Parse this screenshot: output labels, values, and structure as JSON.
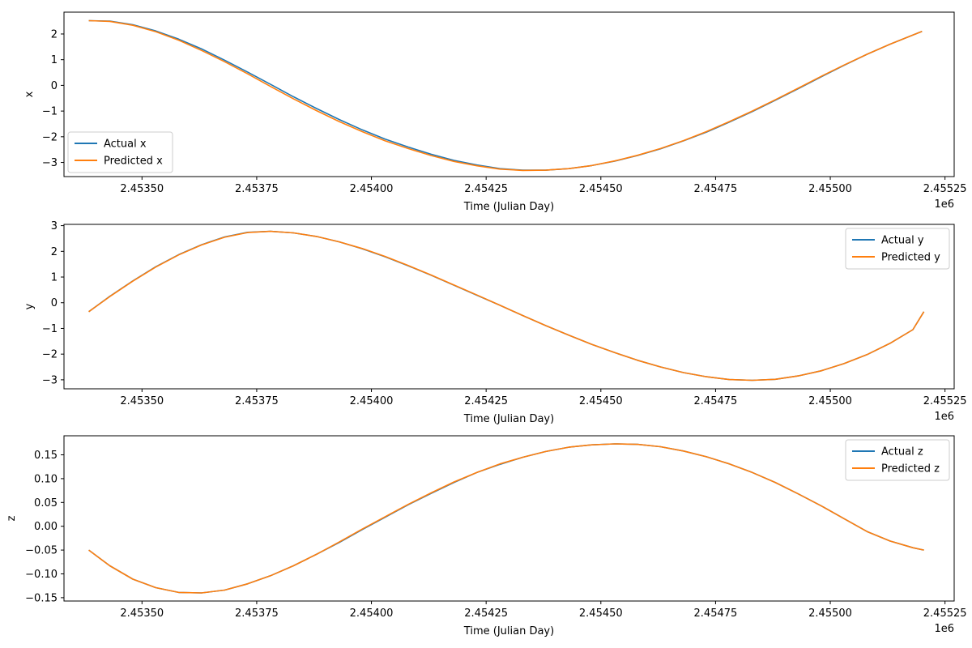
{
  "chart_data": [
    {
      "type": "line",
      "xlabel": "Time (Julian Day)",
      "ylabel": "x",
      "x_offset_label": "1e6",
      "xlim": [
        2453330,
        2455270
      ],
      "ylim": [
        -3.55,
        2.85
      ],
      "xticks": [
        2453500,
        2453750,
        2454000,
        2454250,
        2454500,
        2454750,
        2455000,
        2455250
      ],
      "xtick_labels": [
        "2.45350",
        "2.45375",
        "2.45400",
        "2.45425",
        "2.45450",
        "2.45475",
        "2.45500",
        "2.45525"
      ],
      "yticks": [
        -3,
        -2,
        -1,
        0,
        1,
        2
      ],
      "ytick_labels": [
        "−3",
        "−2",
        "−1",
        "0",
        "1",
        "2"
      ],
      "legend_position": "lower-left",
      "grid": false,
      "x": [
        2453384,
        2453430,
        2453480,
        2453530,
        2453580,
        2453630,
        2453680,
        2453730,
        2453780,
        2453830,
        2453880,
        2453930,
        2453980,
        2454030,
        2454080,
        2454130,
        2454180,
        2454230,
        2454280,
        2454330,
        2454380,
        2454430,
        2454480,
        2454530,
        2454580,
        2454630,
        2454680,
        2454730,
        2454780,
        2454830,
        2454880,
        2454930,
        2454980,
        2455030,
        2455080,
        2455130,
        2455180,
        2455200
      ],
      "series": [
        {
          "name": "Actual x",
          "color": "#1f77b4",
          "values": [
            2.52,
            2.5,
            2.36,
            2.12,
            1.8,
            1.42,
            0.98,
            0.52,
            0.04,
            -0.44,
            -0.9,
            -1.33,
            -1.73,
            -2.09,
            -2.4,
            -2.68,
            -2.92,
            -3.1,
            -3.24,
            -3.3,
            -3.3,
            -3.24,
            -3.12,
            -2.95,
            -2.73,
            -2.47,
            -2.16,
            -1.82,
            -1.43,
            -1.02,
            -0.58,
            -0.13,
            0.33,
            0.78,
            1.21,
            1.6,
            1.96,
            2.1
          ]
        },
        {
          "name": "Predicted x",
          "color": "#ff7f0e",
          "values": [
            2.52,
            2.49,
            2.34,
            2.09,
            1.76,
            1.36,
            0.92,
            0.45,
            -0.04,
            -0.52,
            -0.98,
            -1.41,
            -1.8,
            -2.16,
            -2.46,
            -2.73,
            -2.96,
            -3.13,
            -3.26,
            -3.31,
            -3.3,
            -3.24,
            -3.12,
            -2.94,
            -2.72,
            -2.46,
            -2.15,
            -1.8,
            -1.41,
            -1.0,
            -0.56,
            -0.11,
            0.35,
            0.79,
            1.21,
            1.6,
            1.96,
            2.1
          ]
        }
      ]
    },
    {
      "type": "line",
      "xlabel": "Time (Julian Day)",
      "ylabel": "y",
      "x_offset_label": "1e6",
      "xlim": [
        2453330,
        2455270
      ],
      "ylim": [
        -3.35,
        3.05
      ],
      "xticks": [
        2453500,
        2453750,
        2454000,
        2454250,
        2454500,
        2454750,
        2455000,
        2455250
      ],
      "xtick_labels": [
        "2.45350",
        "2.45375",
        "2.45400",
        "2.45425",
        "2.45450",
        "2.45475",
        "2.45500",
        "2.45525"
      ],
      "yticks": [
        -3,
        -2,
        -1,
        0,
        1,
        2,
        3
      ],
      "ytick_labels": [
        "−3",
        "−2",
        "−1",
        "0",
        "1",
        "2",
        "3"
      ],
      "legend_position": "upper-right",
      "grid": false,
      "x": [
        2453384,
        2453430,
        2453480,
        2453530,
        2453580,
        2453630,
        2453680,
        2453730,
        2453780,
        2453830,
        2453880,
        2453930,
        2453980,
        2454030,
        2454080,
        2454130,
        2454180,
        2454230,
        2454280,
        2454330,
        2454380,
        2454430,
        2454480,
        2454530,
        2454580,
        2454630,
        2454680,
        2454730,
        2454780,
        2454830,
        2454880,
        2454930,
        2454980,
        2455030,
        2455080,
        2455130,
        2455180,
        2455204
      ],
      "series": [
        {
          "name": "Actual y",
          "color": "#1f77b4",
          "values": [
            -0.35,
            0.25,
            0.85,
            1.4,
            1.87,
            2.26,
            2.56,
            2.74,
            2.78,
            2.72,
            2.58,
            2.37,
            2.1,
            1.79,
            1.44,
            1.07,
            0.68,
            0.29,
            -0.1,
            -0.5,
            -0.89,
            -1.26,
            -1.62,
            -1.94,
            -2.24,
            -2.5,
            -2.72,
            -2.88,
            -2.99,
            -3.02,
            -2.98,
            -2.85,
            -2.65,
            -2.37,
            -2.02,
            -1.58,
            -1.05,
            -0.35
          ]
        },
        {
          "name": "Predicted y",
          "color": "#ff7f0e",
          "values": [
            -0.35,
            0.24,
            0.84,
            1.39,
            1.86,
            2.25,
            2.55,
            2.73,
            2.78,
            2.72,
            2.58,
            2.37,
            2.11,
            1.8,
            1.45,
            1.08,
            0.69,
            0.3,
            -0.1,
            -0.5,
            -0.89,
            -1.26,
            -1.62,
            -1.94,
            -2.24,
            -2.5,
            -2.72,
            -2.88,
            -2.99,
            -3.02,
            -2.98,
            -2.85,
            -2.65,
            -2.37,
            -2.02,
            -1.58,
            -1.05,
            -0.35
          ]
        }
      ]
    },
    {
      "type": "line",
      "xlabel": "Time (Julian Day)",
      "ylabel": "z",
      "x_offset_label": "1e6",
      "xlim": [
        2453330,
        2455270
      ],
      "ylim": [
        -0.157,
        0.19
      ],
      "xticks": [
        2453500,
        2453750,
        2454000,
        2454250,
        2454500,
        2454750,
        2455000,
        2455250
      ],
      "xtick_labels": [
        "2.45350",
        "2.45375",
        "2.45400",
        "2.45425",
        "2.45450",
        "2.45475",
        "2.45500",
        "2.45525"
      ],
      "yticks": [
        -0.15,
        -0.1,
        -0.05,
        0.0,
        0.05,
        0.1,
        0.15
      ],
      "ytick_labels": [
        "−0.15",
        "−0.10",
        "−0.05",
        "0.00",
        "0.05",
        "0.10",
        "0.15"
      ],
      "legend_position": "upper-right",
      "grid": false,
      "x": [
        2453384,
        2453430,
        2453480,
        2453530,
        2453580,
        2453630,
        2453680,
        2453730,
        2453780,
        2453830,
        2453880,
        2453930,
        2453980,
        2454030,
        2454080,
        2454130,
        2454180,
        2454230,
        2454280,
        2454330,
        2454380,
        2454430,
        2454480,
        2454530,
        2454580,
        2454630,
        2454680,
        2454730,
        2454780,
        2454830,
        2454880,
        2454930,
        2454980,
        2455030,
        2455080,
        2455130,
        2455180,
        2455204
      ],
      "series": [
        {
          "name": "Actual z",
          "color": "#1f77b4",
          "values": [
            -0.05,
            -0.083,
            -0.111,
            -0.129,
            -0.139,
            -0.14,
            -0.134,
            -0.121,
            -0.104,
            -0.083,
            -0.059,
            -0.034,
            -0.007,
            0.019,
            0.045,
            0.069,
            0.092,
            0.113,
            0.13,
            0.145,
            0.157,
            0.166,
            0.171,
            0.173,
            0.172,
            0.167,
            0.158,
            0.146,
            0.131,
            0.113,
            0.092,
            0.068,
            0.043,
            0.016,
            -0.011,
            -0.031,
            -0.045,
            -0.05
          ]
        },
        {
          "name": "Predicted z",
          "color": "#ff7f0e",
          "values": [
            -0.05,
            -0.083,
            -0.111,
            -0.129,
            -0.139,
            -0.14,
            -0.134,
            -0.121,
            -0.104,
            -0.083,
            -0.059,
            -0.033,
            -0.006,
            0.02,
            0.046,
            0.07,
            0.093,
            0.113,
            0.131,
            0.145,
            0.157,
            0.166,
            0.171,
            0.173,
            0.172,
            0.167,
            0.158,
            0.146,
            0.131,
            0.113,
            0.092,
            0.068,
            0.043,
            0.016,
            -0.011,
            -0.031,
            -0.045,
            -0.05
          ]
        }
      ]
    }
  ]
}
